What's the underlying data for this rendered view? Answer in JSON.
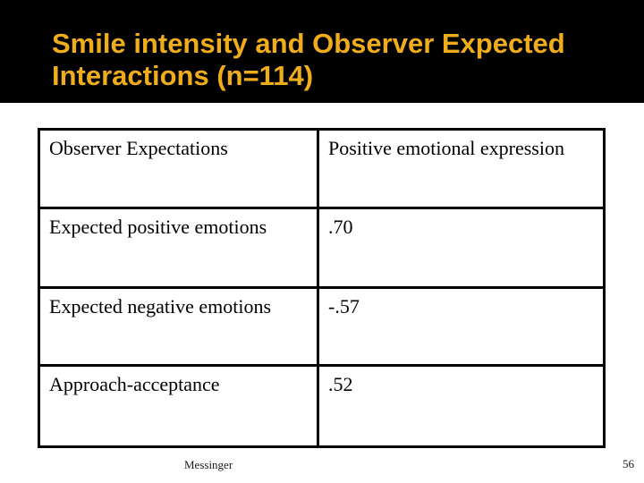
{
  "slide": {
    "title": "Smile intensity and Observer Expected Interactions (n=114)"
  },
  "table": {
    "header": {
      "col1": "Observer Expectations",
      "col2": "Positive emotional expression"
    },
    "rows": [
      {
        "label": "Expected positive emotions",
        "value": ".70"
      },
      {
        "label": "Expected negative emotions",
        "value": "-.57"
      },
      {
        "label": "Approach-acceptance",
        "value": ".52"
      }
    ]
  },
  "footer": {
    "author": "Messinger",
    "slide_number": "56"
  },
  "colors": {
    "title_gold": "#EFAD1B",
    "band_black": "#000000",
    "table_border": "#000000"
  }
}
